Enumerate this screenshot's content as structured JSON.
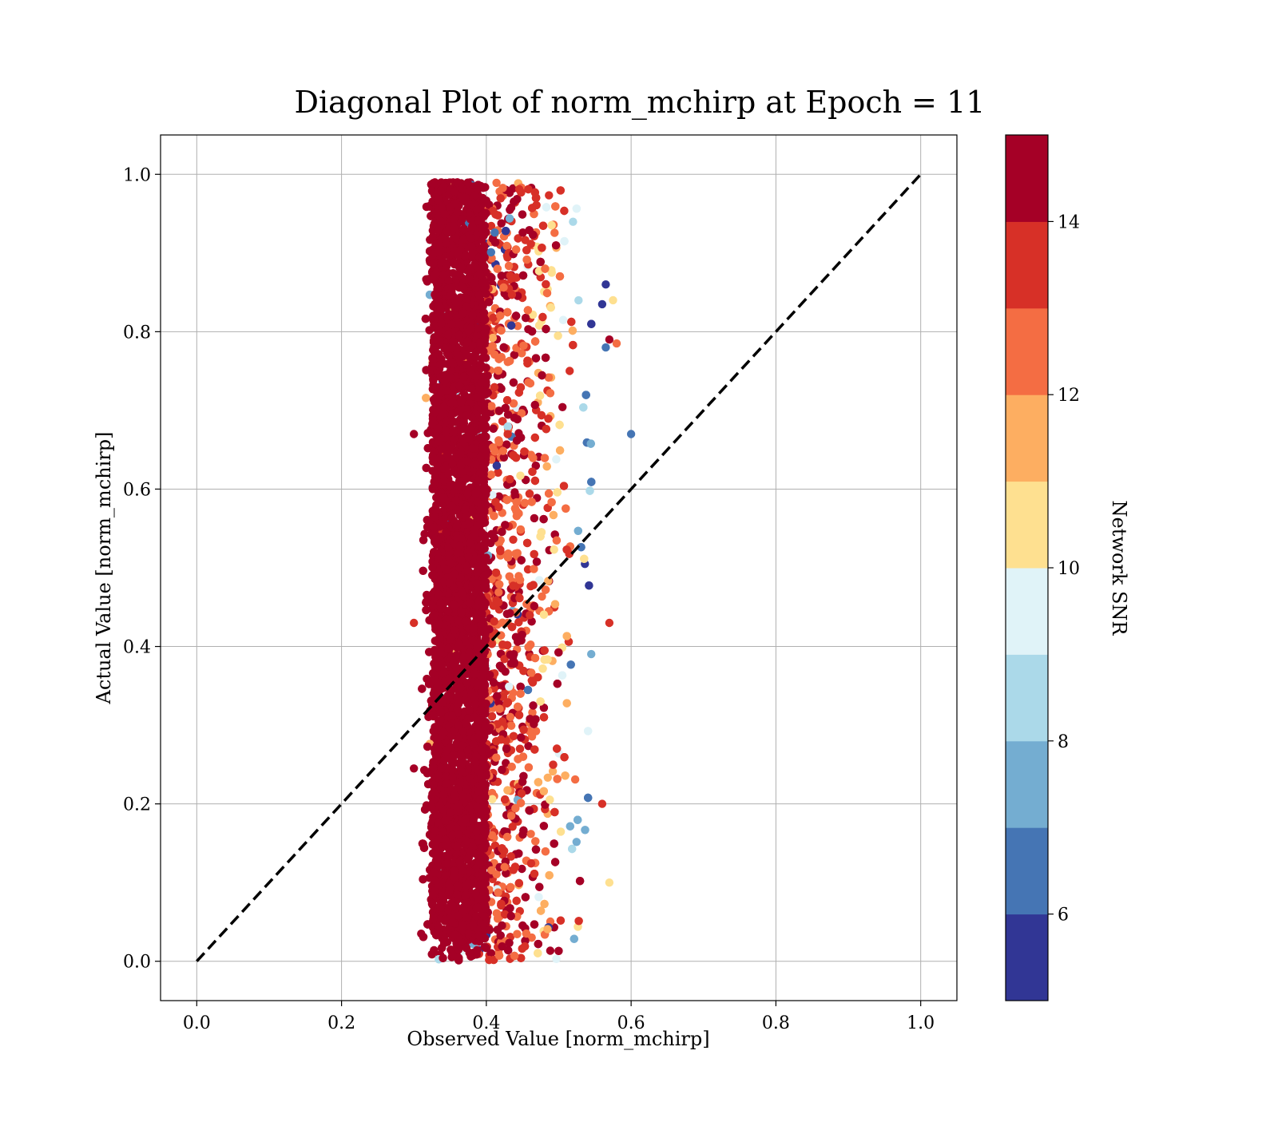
{
  "chart_data": {
    "type": "scatter",
    "title": "Diagonal Plot of norm_mchirp at Epoch = 11",
    "xlabel": "Observed Value [norm_mchirp]",
    "ylabel": "Actual Value [norm_mchirp]",
    "xlim": [
      -0.05,
      1.05
    ],
    "ylim": [
      -0.05,
      1.05
    ],
    "xticks": [
      0.0,
      0.2,
      0.4,
      0.6,
      0.8,
      1.0
    ],
    "yticks": [
      0.0,
      0.2,
      0.4,
      0.6,
      0.8,
      1.0
    ],
    "xtick_labels": [
      "0.0",
      "0.2",
      "0.4",
      "0.6",
      "0.8",
      "1.0"
    ],
    "ytick_labels": [
      "0.0",
      "0.2",
      "0.4",
      "0.6",
      "0.8",
      "1.0"
    ],
    "grid": true,
    "reference_line": {
      "x": [
        0.0,
        1.0
      ],
      "y": [
        0.0,
        1.0
      ],
      "style": "dashed",
      "color": "#000000"
    },
    "colorbar": {
      "label": "Network SNR",
      "range": [
        5,
        15
      ],
      "ticks": [
        6,
        8,
        10,
        12,
        14
      ],
      "tick_labels": [
        "6",
        "8",
        "10",
        "12",
        "14"
      ],
      "colors": [
        "#313695",
        "#4575b4",
        "#74add1",
        "#abd9e9",
        "#e0f3f8",
        "#fee090",
        "#fdae61",
        "#f46d43",
        "#d73027",
        "#a50026"
      ]
    },
    "scatter_distribution": {
      "x_range": [
        0.3,
        0.6
      ],
      "y_range": [
        0.0,
        1.0
      ],
      "trend": "high SNR (dark red) concentrated at observed 0.31-0.40; SNR decreases toward observed 0.55 (blue)"
    },
    "outliers": [
      {
        "x": 0.6,
        "y": 0.67,
        "snr": 6.5
      },
      {
        "x": 0.58,
        "y": 0.785,
        "snr": 12.5
      },
      {
        "x": 0.575,
        "y": 0.84,
        "snr": 10.5
      },
      {
        "x": 0.57,
        "y": 0.1,
        "snr": 10.5
      },
      {
        "x": 0.57,
        "y": 0.43,
        "snr": 13.5
      },
      {
        "x": 0.56,
        "y": 0.2,
        "snr": 13.5
      },
      {
        "x": 0.3,
        "y": 0.67,
        "snr": 15
      },
      {
        "x": 0.3,
        "y": 0.43,
        "snr": 13.5
      },
      {
        "x": 0.3,
        "y": 0.245,
        "snr": 15
      },
      {
        "x": 0.31,
        "y": 0.035,
        "snr": 15
      },
      {
        "x": 0.565,
        "y": 0.78,
        "snr": 6.5
      },
      {
        "x": 0.565,
        "y": 0.86,
        "snr": 5.5
      },
      {
        "x": 0.56,
        "y": 0.835,
        "snr": 5.5
      },
      {
        "x": 0.57,
        "y": 0.79,
        "snr": 15
      }
    ]
  }
}
